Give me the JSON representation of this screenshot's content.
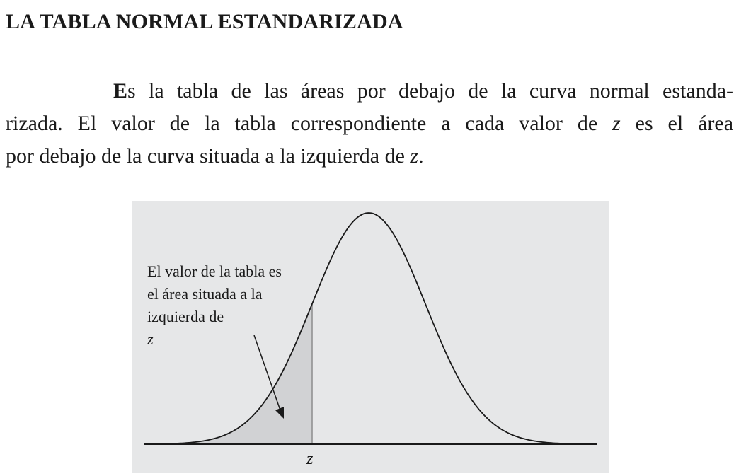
{
  "heading": "LA TABLA NORMAL ESTANDARIZADA",
  "paragraph": {
    "line1_dropcap": "E",
    "line1_rest": "s la tabla de las áreas por debajo de la curva normal estanda-",
    "line2_before_z": "rizada. El valor de la tabla correspondiente a cada valor de",
    "line2_z": "z",
    "line2_after_z": "es el área",
    "line3_before_z": "por debajo de la curva situada a la izquierda de",
    "line3_z": "z",
    "line3_end": "."
  },
  "figure": {
    "caption_line1": "El valor de la tabla es",
    "caption_line2": "el área situada a la",
    "caption_line3_text": "izquierda de",
    "caption_line3_z": "z",
    "axis_label": "z",
    "colors": {
      "background": "#e6e7e8",
      "shaded_area": "#d1d2d4",
      "curve": "#1a1a1a"
    }
  }
}
